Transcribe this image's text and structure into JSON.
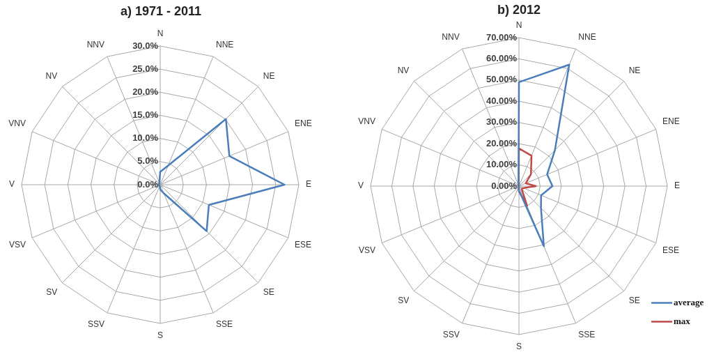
{
  "chart_data": [
    {
      "type": "radar",
      "title": "a) 1971 - 2011",
      "categories": [
        "N",
        "NNE",
        "NE",
        "ENE",
        "E",
        "ESE",
        "SE",
        "SSE",
        "S",
        "SSV",
        "SV",
        "VSV",
        "V",
        "VNV",
        "NV",
        "NNV"
      ],
      "series": [
        {
          "color": "#4a7ebb",
          "values": [
            2.8,
            4.5,
            20.1,
            16.2,
            26.9,
            11.4,
            14.2,
            2,
            1,
            0.3,
            0.3,
            0.3,
            0.3,
            0.3,
            0.3,
            0.5
          ]
        }
      ],
      "ylim": [
        0,
        30
      ],
      "yticks": [
        {
          "value": 0,
          "label": "0.0%"
        },
        {
          "value": 5,
          "label": "5.0%"
        },
        {
          "value": 10,
          "label": "10.0%"
        },
        {
          "value": 15,
          "label": "15.0%"
        },
        {
          "value": 20,
          "label": "20.0%"
        },
        {
          "value": 25,
          "label": "25.0%"
        },
        {
          "value": 30,
          "label": "30.0%"
        }
      ],
      "grid": true,
      "marker": "none"
    },
    {
      "type": "radar",
      "title": "b) 2012",
      "categories": [
        "N",
        "NNE",
        "NE",
        "ENE",
        "E",
        "ESE",
        "SE",
        "SSE",
        "S",
        "SSV",
        "SV",
        "VSV",
        "V",
        "VNV",
        "NV",
        "NNV"
      ],
      "series": [
        {
          "name": "average",
          "color": "#4a7ebb",
          "values": [
            49,
            62,
            24,
            14.4,
            15.8,
            11.3,
            14.7,
            30.7,
            2,
            0.5,
            0.3,
            0.3,
            0.3,
            0.3,
            0.3,
            0.5
          ]
        },
        {
          "name": "max",
          "color": "#be4b48",
          "values": [
            17.8,
            15.5,
            8,
            3.5,
            8,
            2.4,
            1.8,
            10,
            2.5,
            0.5,
            0.3,
            0.3,
            0.3,
            0.3,
            0.3,
            0.3
          ]
        }
      ],
      "ylim": [
        0,
        70
      ],
      "yticks": [
        {
          "value": 0,
          "label": "0.00%"
        },
        {
          "value": 10,
          "label": "10.00%"
        },
        {
          "value": 20,
          "label": "20.00%"
        },
        {
          "value": 30,
          "label": "30.00%"
        },
        {
          "value": 40,
          "label": "40.00%"
        },
        {
          "value": 50,
          "label": "50.00%"
        },
        {
          "value": 60,
          "label": "60.00%"
        },
        {
          "value": 70,
          "label": "70.00%"
        }
      ],
      "grid": true,
      "legend": "bottom right",
      "marker": "none"
    }
  ]
}
